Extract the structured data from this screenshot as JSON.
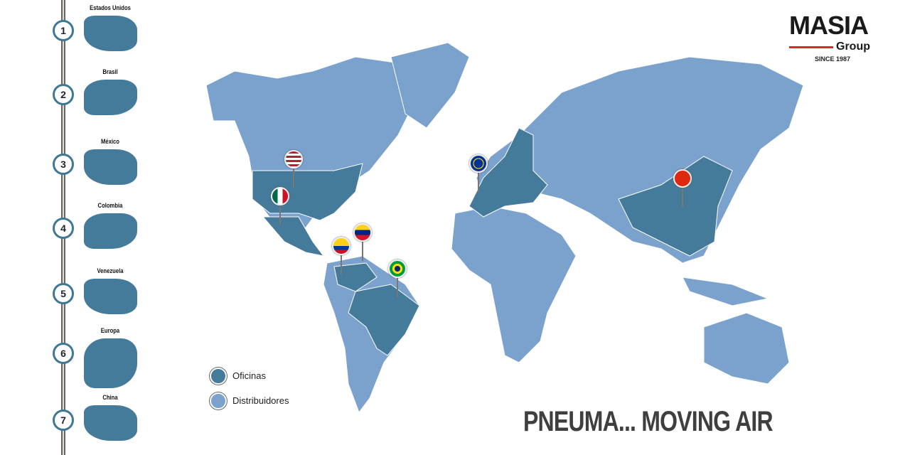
{
  "colors": {
    "offices": "#457b9a",
    "distributors": "#7ba2cd",
    "accent": "#d52b2b"
  },
  "timeline": [
    {
      "number": "1",
      "country": "Estados Unidos"
    },
    {
      "number": "2",
      "country": "Brasil"
    },
    {
      "number": "3",
      "country": "México"
    },
    {
      "number": "4",
      "country": "Colombia"
    },
    {
      "number": "5",
      "country": "Venezuela"
    },
    {
      "number": "6",
      "country": "Europa"
    },
    {
      "number": "7",
      "country": "China"
    }
  ],
  "logo": {
    "name": "MASIA",
    "sub": "Group",
    "since": "SINCE 1987"
  },
  "legend": {
    "offices": "Oficinas",
    "distributors": "Distribuidores"
  },
  "slogan": "PNEUMA... MOVING AIR",
  "map_pins": [
    {
      "flag": "usa-flag-icon"
    },
    {
      "flag": "mexico-flag-icon"
    },
    {
      "flag": "colombia-flag-icon"
    },
    {
      "flag": "venezuela-flag-icon"
    },
    {
      "flag": "brazil-flag-icon"
    },
    {
      "flag": "eu-flag-icon"
    },
    {
      "flag": "china-flag-icon"
    }
  ]
}
